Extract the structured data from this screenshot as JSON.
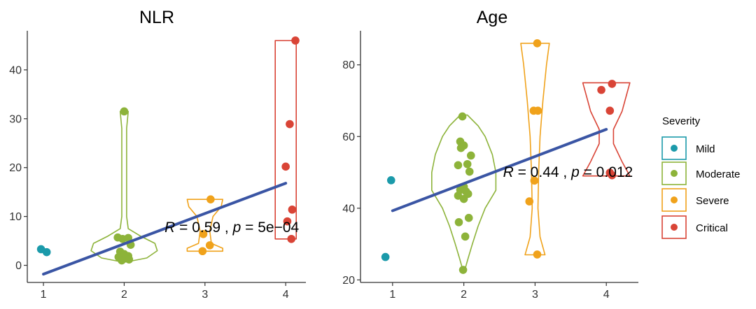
{
  "legend": {
    "title": "Severity",
    "items": [
      {
        "label": "Mild",
        "color": "#1b9aaa"
      },
      {
        "label": "Moderate",
        "color": "#8db33a"
      },
      {
        "label": "Severe",
        "color": "#f0a21b"
      },
      {
        "label": "Critical",
        "color": "#d94436"
      }
    ]
  },
  "chart_data": [
    {
      "type": "violin-scatter",
      "title": "NLR",
      "xlabel": "",
      "ylabel": "",
      "x_ticks": [
        "1",
        "2",
        "3",
        "4"
      ],
      "xlim": [
        0.8,
        4.25
      ],
      "y_ticks": [
        "0",
        "10",
        "20",
        "30",
        "40"
      ],
      "ylim": [
        -3.5,
        48
      ],
      "stat": {
        "r_label": "R",
        "r_text": " = 0.59 , ",
        "p_label": "p",
        "p_text": " = 5e−04",
        "x": 2.5,
        "y": 7.8
      },
      "regression": {
        "x0": 1.0,
        "y0": -1.8,
        "x1": 4.0,
        "y1": 16.8,
        "color": "#3a55a4"
      },
      "groups": [
        {
          "name": "Mild",
          "x": 1,
          "points": [
            [
              0.97,
              3.3
            ],
            [
              1.04,
              2.7
            ]
          ],
          "violin": null
        },
        {
          "name": "Moderate",
          "x": 2,
          "points": [
            [
              1.92,
              5.7
            ],
            [
              1.98,
              5.4
            ],
            [
              2.05,
              5.6
            ],
            [
              2.08,
              4.2
            ],
            [
              1.95,
              2.8
            ],
            [
              2.0,
              2.3
            ],
            [
              2.05,
              1.9
            ],
            [
              1.93,
              1.7
            ],
            [
              2.02,
              1.4
            ],
            [
              1.97,
              1.0
            ],
            [
              2.06,
              1.2
            ],
            [
              2.0,
              31.5
            ]
          ],
          "violin": [
            [
              0.7,
              0.03
            ],
            [
              1.5,
              0.28
            ],
            [
              3,
              0.41
            ],
            [
              4.5,
              0.38
            ],
            [
              6,
              0.2
            ],
            [
              7.5,
              0.05
            ],
            [
              10,
              0.03
            ],
            [
              20,
              0.03
            ],
            [
              28,
              0.03
            ],
            [
              31.5,
              0.05
            ]
          ]
        },
        {
          "name": "Severe",
          "x": 3,
          "points": [
            [
              3.07,
              13.5
            ],
            [
              2.98,
              6.4
            ],
            [
              3.06,
              4.1
            ],
            [
              2.97,
              2.9
            ]
          ],
          "violin": [
            [
              2.9,
              0.22
            ],
            [
              3.5,
              0.22
            ],
            [
              4.5,
              0.08
            ],
            [
              7,
              0.06
            ],
            [
              10,
              0.1
            ],
            [
              12,
              0.2
            ],
            [
              13.5,
              0.22
            ]
          ]
        },
        {
          "name": "Critical",
          "x": 4,
          "points": [
            [
              4.12,
              46.0
            ],
            [
              4.05,
              28.9
            ],
            [
              4.0,
              20.2
            ],
            [
              4.08,
              11.4
            ],
            [
              4.02,
              9.0
            ],
            [
              4.07,
              5.4
            ]
          ],
          "violin": [
            [
              5.4,
              0.13
            ],
            [
              20,
              0.13
            ],
            [
              30,
              0.13
            ],
            [
              46,
              0.13
            ]
          ]
        }
      ]
    },
    {
      "type": "violin-scatter",
      "title": "Age",
      "xlabel": "",
      "ylabel": "",
      "x_ticks": [
        "1",
        "2",
        "3",
        "4"
      ],
      "xlim": [
        0.55,
        4.45
      ],
      "y_ticks": [
        "20",
        "40",
        "60",
        "80"
      ],
      "ylim": [
        19.3,
        89.5
      ],
      "stat": {
        "r_label": "R",
        "r_text": " = 0.44 , ",
        "p_label": "p",
        "p_text": " = 0.012",
        "x": 2.55,
        "y": 50.1
      },
      "regression": {
        "x0": 1.0,
        "y0": 39.3,
        "x1": 4.0,
        "y1": 62.0,
        "color": "#3a55a4"
      },
      "groups": [
        {
          "name": "Mild",
          "x": 1,
          "points": [
            [
              0.98,
              47.8
            ],
            [
              0.9,
              26.4
            ]
          ],
          "violin": null
        },
        {
          "name": "Moderate",
          "x": 2,
          "points": [
            [
              1.98,
              65.6
            ],
            [
              1.95,
              58.6
            ],
            [
              2.0,
              57.5
            ],
            [
              1.96,
              56.8
            ],
            [
              2.1,
              54.7
            ],
            [
              2.05,
              52.3
            ],
            [
              1.92,
              52.0
            ],
            [
              2.08,
              50.2
            ],
            [
              2.0,
              46.0
            ],
            [
              1.95,
              45.1
            ],
            [
              2.03,
              44.7
            ],
            [
              2.06,
              44.0
            ],
            [
              1.92,
              43.5
            ],
            [
              2.0,
              42.6
            ],
            [
              2.07,
              37.3
            ],
            [
              1.93,
              36.1
            ],
            [
              2.02,
              32.1
            ],
            [
              1.99,
              22.8
            ]
          ],
          "violin": [
            [
              22.5,
              0.01
            ],
            [
              26,
              0.06
            ],
            [
              30,
              0.12
            ],
            [
              35,
              0.2
            ],
            [
              40,
              0.3
            ],
            [
              45,
              0.45
            ],
            [
              50,
              0.45
            ],
            [
              55,
              0.4
            ],
            [
              60,
              0.3
            ],
            [
              63,
              0.2
            ],
            [
              66,
              0.05
            ]
          ]
        },
        {
          "name": "Severe",
          "x": 3,
          "points": [
            [
              3.03,
              86.0
            ],
            [
              2.98,
              67.2
            ],
            [
              3.04,
              67.2
            ],
            [
              2.99,
              47.7
            ],
            [
              2.92,
              41.9
            ],
            [
              3.03,
              27.1
            ]
          ],
          "violin": [
            [
              27,
              0.14
            ],
            [
              32,
              0.07
            ],
            [
              40,
              0.04
            ],
            [
              50,
              0.05
            ],
            [
              60,
              0.07
            ],
            [
              70,
              0.11
            ],
            [
              80,
              0.16
            ],
            [
              86,
              0.2
            ]
          ]
        },
        {
          "name": "Critical",
          "x": 4,
          "points": [
            [
              3.93,
              73.0
            ],
            [
              4.08,
              74.7
            ],
            [
              4.05,
              67.2
            ],
            [
              4.05,
              49.9
            ],
            [
              4.08,
              49.2
            ]
          ],
          "violin": [
            [
              49,
              0.33
            ],
            [
              53,
              0.22
            ],
            [
              58,
              0.1
            ],
            [
              62,
              0.1
            ],
            [
              67,
              0.22
            ],
            [
              75,
              0.33
            ]
          ]
        }
      ]
    }
  ]
}
